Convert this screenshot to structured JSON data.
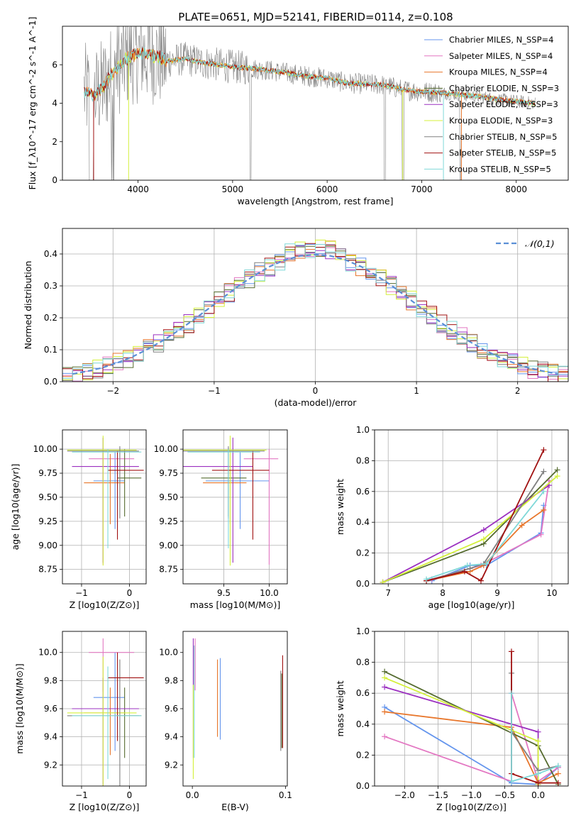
{
  "figure_title": "PLATE=0651, MJD=52141, FIBERID=0114, z=0.108",
  "colors": {
    "Chabrier MILES": "#6495ed",
    "Salpeter MILES": "#e377c2",
    "Kroupa MILES": "#e8762b",
    "Chabrier ELODIE": "#556b2f",
    "Salpeter ELODIE": "#9b30c0",
    "Kroupa ELODIE": "#d4f03a",
    "Chabrier STELIB": "#808080",
    "Salpeter STELIB": "#a01010",
    "Kroupa STELIB": "#7fd8d8",
    "normal": "#5b8fd6"
  },
  "chart_data": [
    {
      "id": "spectrum",
      "type": "line",
      "xlabel": "wavelength [Angstrom, rest frame]",
      "ylabel": "Flux [f_λ10^-17 erg cm^-2 s^-1 A^-1]",
      "xlim": [
        3200,
        8550
      ],
      "ylim": [
        0,
        8
      ],
      "xticks": [
        4000,
        5000,
        6000,
        7000,
        8000
      ],
      "yticks": [
        0,
        2,
        4,
        6
      ],
      "legend_position": "right",
      "legend": [
        "Chabrier MILES, N_SSP=4",
        "Salpeter MILES, N_SSP=4",
        "Kroupa MILES, N_SSP=4",
        "Chabrier ELODIE, N_SSP=3",
        "Salpeter ELODIE, N_SSP=3",
        "Kroupa ELODIE, N_SSP=3",
        "Chabrier STELIB, N_SSP=5",
        "Salpeter STELIB, N_SSP=5",
        "Kroupa STELIB, N_SSP=5"
      ],
      "continuum": {
        "x": [
          3420,
          3550,
          3650,
          3750,
          3850,
          3950,
          4050,
          4150,
          4300,
          4500,
          4700,
          5000,
          5200,
          5400,
          5600,
          5800,
          6000,
          6200,
          6400,
          6600,
          6800,
          7000,
          7200,
          7400,
          7600,
          7800,
          8000,
          8200
        ],
        "y": [
          4.6,
          4.4,
          5.0,
          5.7,
          6.2,
          6.5,
          6.6,
          6.5,
          6.2,
          6.3,
          6.1,
          5.9,
          5.8,
          5.7,
          5.55,
          5.4,
          5.3,
          5.05,
          5.0,
          4.95,
          4.7,
          4.6,
          4.55,
          4.45,
          4.35,
          4.2,
          4.1,
          4.0
        ]
      }
    },
    {
      "id": "residuals",
      "type": "histogram",
      "xlabel": "(data-model)/error",
      "ylabel": "Normed distribution",
      "xlim": [
        -2.5,
        2.5
      ],
      "ylim": [
        0,
        0.48
      ],
      "xticks": [
        -2,
        -1,
        0,
        1,
        2
      ],
      "yticks": [
        0.0,
        0.1,
        0.2,
        0.3,
        0.4
      ],
      "grid": true,
      "legend": [
        "𝒩(0,1)"
      ],
      "legend_position": "top-right",
      "bin_width": 0.1,
      "reference_density": [
        0.024,
        0.033,
        0.044,
        0.06,
        0.079,
        0.103,
        0.13,
        0.161,
        0.195,
        0.23,
        0.266,
        0.302,
        0.333,
        0.361,
        0.381,
        0.394,
        0.398,
        0.394,
        0.381,
        0.361,
        0.333,
        0.302,
        0.266,
        0.23,
        0.195,
        0.161,
        0.13,
        0.103,
        0.079,
        0.06,
        0.044,
        0.033,
        0.024
      ]
    },
    {
      "id": "age_vs_Z",
      "type": "errorbar",
      "xlabel": "Z [log10(Z/Z⊙)]",
      "ylabel": "age  [log10(age/yr)]",
      "xlim": [
        -1.4,
        0.35
      ],
      "ylim": [
        8.6,
        10.2
      ],
      "xticks": [
        -1,
        0
      ],
      "yticks": [
        8.75,
        9.0,
        9.25,
        9.5,
        9.75,
        10.0
      ],
      "grid": true,
      "points": [
        {
          "series": "Chabrier MILES",
          "x": -0.3,
          "xerr": [
            0.45,
            0.2
          ],
          "y": 9.67,
          "yerr": [
            0.5,
            0.3
          ]
        },
        {
          "series": "Salpeter MILES",
          "x": -0.55,
          "xerr": [
            0.3,
            0.65
          ],
          "y": 9.9,
          "yerr": [
            1.1,
            0.1
          ]
        },
        {
          "series": "Kroupa MILES",
          "x": -0.4,
          "xerr": [
            0.55,
            0.3
          ],
          "y": 9.65,
          "yerr": [
            0.43,
            0.3
          ]
        },
        {
          "series": "Chabrier ELODIE",
          "x": -0.1,
          "xerr": [
            0.15,
            0.35
          ],
          "y": 9.7,
          "yerr": [
            0.4,
            0.3
          ]
        },
        {
          "series": "Salpeter ELODIE",
          "x": -0.55,
          "xerr": [
            0.65,
            0.75
          ],
          "y": 9.82,
          "yerr": [
            1.0,
            0.3
          ]
        },
        {
          "series": "Kroupa ELODIE",
          "x": -0.55,
          "xerr": [
            0.75,
            0.7
          ],
          "y": 9.99,
          "yerr": [
            1.2,
            0.15
          ]
        },
        {
          "series": "Chabrier STELIB",
          "x": -0.2,
          "xerr": [
            1.1,
            0.4
          ],
          "y": 9.98,
          "yerr": [
            0.7,
            0.05
          ]
        },
        {
          "series": "Salpeter STELIB",
          "x": -0.25,
          "xerr": [
            0.2,
            0.55
          ],
          "y": 9.78,
          "yerr": [
            0.72,
            0.2
          ]
        },
        {
          "series": "Kroupa STELIB",
          "x": -0.45,
          "xerr": [
            0.75,
            0.7
          ],
          "y": 9.97,
          "yerr": [
            1.0,
            0.03
          ]
        }
      ]
    },
    {
      "id": "age_vs_mass",
      "type": "errorbar",
      "xlabel": "mass [log10(M/M⊙)]",
      "ylabel": "",
      "xlim": [
        9.05,
        10.2
      ],
      "ylim": [
        8.6,
        10.2
      ],
      "xticks": [
        9.5,
        10.0
      ],
      "yticks": [
        8.75,
        9.0,
        9.25,
        9.5,
        9.75,
        10.0
      ],
      "grid": true,
      "points": [
        {
          "series": "Chabrier MILES",
          "x": 9.68,
          "xerr": [
            0.38,
            0.32
          ],
          "y": 9.67,
          "yerr": [
            0.5,
            0.3
          ]
        },
        {
          "series": "Salpeter MILES",
          "x": 10.0,
          "xerr": [
            0.28,
            0.1
          ],
          "y": 9.9,
          "yerr": [
            1.1,
            0.1
          ]
        },
        {
          "series": "Kroupa MILES",
          "x": 9.57,
          "xerr": [
            0.3,
            0.18
          ],
          "y": 9.65,
          "yerr": [
            0.43,
            0.3
          ]
        },
        {
          "series": "Chabrier ELODIE",
          "x": 9.55,
          "xerr": [
            0.3,
            0.2
          ],
          "y": 9.7,
          "yerr": [
            0.4,
            0.3
          ]
        },
        {
          "series": "Salpeter ELODIE",
          "x": 9.6,
          "xerr": [
            0.62,
            0.22
          ],
          "y": 9.82,
          "yerr": [
            1.0,
            0.3
          ]
        },
        {
          "series": "Kroupa ELODIE",
          "x": 9.57,
          "xerr": [
            0.68,
            0.4
          ],
          "y": 9.99,
          "yerr": [
            1.2,
            0.15
          ]
        },
        {
          "series": "Chabrier STELIB",
          "x": 9.55,
          "xerr": [
            0.65,
            0.4
          ],
          "y": 9.98,
          "yerr": [
            0.7,
            0.05
          ]
        },
        {
          "series": "Salpeter STELIB",
          "x": 9.82,
          "xerr": [
            0.45,
            0.18
          ],
          "y": 9.78,
          "yerr": [
            0.72,
            0.2
          ]
        },
        {
          "series": "Kroupa STELIB",
          "x": 9.55,
          "xerr": [
            0.45,
            0.35
          ],
          "y": 9.97,
          "yerr": [
            1.0,
            0.03
          ]
        }
      ]
    },
    {
      "id": "weight_vs_age",
      "type": "line",
      "xlabel": "age  [log10(age/yr)]",
      "ylabel": "mass weight",
      "xlim": [
        6.75,
        10.3
      ],
      "ylim": [
        0,
        1.0
      ],
      "xticks": [
        7,
        8,
        9,
        10
      ],
      "yticks": [
        0.0,
        0.2,
        0.4,
        0.6,
        0.8,
        1.0
      ],
      "grid": true,
      "series": [
        {
          "series": "Chabrier MILES",
          "x": [
            7.8,
            8.5,
            8.8,
            9.8,
            9.85
          ],
          "y": [
            0.02,
            0.12,
            0.12,
            0.33,
            0.51
          ]
        },
        {
          "series": "Salpeter MILES",
          "x": [
            7.8,
            8.7,
            9.8,
            9.95
          ],
          "y": [
            0.03,
            0.12,
            0.32,
            0.67
          ]
        },
        {
          "series": "Kroupa MILES",
          "x": [
            7.7,
            8.5,
            8.75,
            9.45,
            9.85
          ],
          "y": [
            0.02,
            0.08,
            0.12,
            0.38,
            0.48
          ]
        },
        {
          "series": "Chabrier ELODIE",
          "x": [
            6.9,
            8.75,
            10.1
          ],
          "y": [
            0.01,
            0.26,
            0.74
          ]
        },
        {
          "series": "Salpeter ELODIE",
          "x": [
            6.9,
            8.75,
            9.95
          ],
          "y": [
            0.01,
            0.35,
            0.64
          ]
        },
        {
          "series": "Kroupa ELODIE",
          "x": [
            6.9,
            8.75,
            10.1
          ],
          "y": [
            0.01,
            0.29,
            0.7
          ]
        },
        {
          "series": "Chabrier STELIB",
          "x": [
            7.7,
            8.5,
            8.75,
            9.85
          ],
          "y": [
            0.02,
            0.1,
            0.13,
            0.73
          ]
        },
        {
          "series": "Salpeter STELIB",
          "x": [
            7.7,
            8.4,
            8.7,
            9.85
          ],
          "y": [
            0.02,
            0.08,
            0.02,
            0.87
          ]
        },
        {
          "series": "Kroupa STELIB",
          "x": [
            7.7,
            8.45,
            8.8,
            9.85
          ],
          "y": [
            0.03,
            0.12,
            0.13,
            0.6
          ]
        }
      ]
    },
    {
      "id": "mass_vs_Z",
      "type": "errorbar",
      "xlabel": "Z [log10(Z/Z⊙)]",
      "ylabel": "mass [log10(M/M⊙)]",
      "xlim": [
        -1.4,
        0.35
      ],
      "ylim": [
        9.05,
        10.15
      ],
      "xticks": [
        -1,
        0
      ],
      "yticks": [
        9.2,
        9.4,
        9.6,
        9.8,
        10.0
      ],
      "grid": true,
      "points": [
        {
          "series": "Chabrier MILES",
          "x": -0.3,
          "xerr": [
            0.45,
            0.2
          ],
          "y": 9.68,
          "yerr": [
            0.38,
            0.32
          ]
        },
        {
          "series": "Salpeter MILES",
          "x": -0.55,
          "xerr": [
            0.3,
            0.65
          ],
          "y": 10.0,
          "yerr": [
            0.28,
            0.1
          ]
        },
        {
          "series": "Kroupa MILES",
          "x": -0.4,
          "xerr": [
            0.55,
            0.3
          ],
          "y": 9.57,
          "yerr": [
            0.3,
            0.18
          ]
        },
        {
          "series": "Chabrier ELODIE",
          "x": -0.1,
          "xerr": [
            0.15,
            0.35
          ],
          "y": 9.55,
          "yerr": [
            0.3,
            0.2
          ]
        },
        {
          "series": "Salpeter ELODIE",
          "x": -0.55,
          "xerr": [
            0.65,
            0.75
          ],
          "y": 9.6,
          "yerr": [
            0.62,
            0.22
          ]
        },
        {
          "series": "Kroupa ELODIE",
          "x": -0.55,
          "xerr": [
            0.75,
            0.7
          ],
          "y": 9.57,
          "yerr": [
            0.68,
            0.4
          ]
        },
        {
          "series": "Chabrier STELIB",
          "x": -0.2,
          "xerr": [
            1.1,
            0.4
          ],
          "y": 9.55,
          "yerr": [
            0.65,
            0.4
          ]
        },
        {
          "series": "Salpeter STELIB",
          "x": -0.25,
          "xerr": [
            0.2,
            0.55
          ],
          "y": 9.82,
          "yerr": [
            0.45,
            0.18
          ]
        },
        {
          "series": "Kroupa STELIB",
          "x": -0.45,
          "xerr": [
            0.75,
            0.7
          ],
          "y": 9.55,
          "yerr": [
            0.45,
            0.35
          ]
        }
      ]
    },
    {
      "id": "mass_vs_ebv",
      "type": "errorbar",
      "xlabel": "E(B-V)",
      "ylabel": "",
      "xlim": [
        -0.01,
        0.102
      ],
      "ylim": [
        9.05,
        10.15
      ],
      "xticks": [
        0.0,
        0.1
      ],
      "yticks": [
        9.2,
        9.4,
        9.6,
        9.8,
        10.0
      ],
      "grid": false,
      "points": [
        {
          "series": "Chabrier MILES",
          "x": 0.03,
          "y": 9.68,
          "yerr": [
            0.3,
            0.28
          ]
        },
        {
          "series": "Salpeter MILES",
          "x": 0.003,
          "y": 10.0,
          "yerr": [
            0.27,
            0.1
          ]
        },
        {
          "series": "Kroupa MILES",
          "x": 0.027,
          "y": 9.57,
          "yerr": [
            0.17,
            0.38
          ]
        },
        {
          "series": "Chabrier ELODIE",
          "x": 0.096,
          "y": 9.55,
          "yerr": [
            0.23,
            0.3
          ]
        },
        {
          "series": "Salpeter ELODIE",
          "x": 0.001,
          "y": 9.6,
          "yerr": [
            0.35,
            0.5
          ]
        },
        {
          "series": "Kroupa ELODIE",
          "x": 0.001,
          "y": 9.57,
          "yerr": [
            0.47,
            0.2
          ]
        },
        {
          "series": "Chabrier STELIB",
          "x": 0.095,
          "y": 9.55,
          "yerr": [
            0.25,
            0.32
          ]
        },
        {
          "series": "Salpeter STELIB",
          "x": 0.097,
          "y": 9.82,
          "yerr": [
            0.5,
            0.16
          ]
        },
        {
          "series": "Kroupa STELIB",
          "x": 0.002,
          "y": 9.55,
          "yerr": [
            0.3,
            0.5
          ]
        }
      ]
    },
    {
      "id": "weight_vs_Z",
      "type": "line",
      "xlabel": "Z [log10(Z/Z⊙)]",
      "ylabel": "mass weight",
      "xlim": [
        -2.45,
        0.45
      ],
      "ylim": [
        0,
        1.0
      ],
      "xticks": [
        -2.0,
        -1.5,
        -1.0,
        -0.5,
        0.0
      ],
      "yticks": [
        0.0,
        0.2,
        0.4,
        0.6,
        0.8,
        1.0
      ],
      "grid": true,
      "series": [
        {
          "series": "Chabrier MILES",
          "x": [
            -2.3,
            -0.4,
            0.0,
            0.3
          ],
          "y": [
            0.51,
            0.02,
            0.01,
            0.12
          ]
        },
        {
          "series": "Salpeter MILES",
          "x": [
            -2.3,
            -0.4,
            -0.4,
            0.0,
            0.3
          ],
          "y": [
            0.32,
            0.03,
            0.6,
            0.03,
            0.12
          ]
        },
        {
          "series": "Kroupa MILES",
          "x": [
            -2.3,
            -0.4,
            0.0,
            0.3
          ],
          "y": [
            0.48,
            0.38,
            0.02,
            0.08
          ]
        },
        {
          "series": "Chabrier ELODIE",
          "x": [
            -2.3,
            0.0,
            0.3
          ],
          "y": [
            0.74,
            0.26,
            0.01
          ]
        },
        {
          "series": "Salpeter ELODIE",
          "x": [
            -2.3,
            0.0,
            0.0
          ],
          "y": [
            0.64,
            0.35,
            0.01
          ]
        },
        {
          "series": "Kroupa ELODIE",
          "x": [
            -2.3,
            0.0,
            0.0
          ],
          "y": [
            0.7,
            0.29,
            0.01
          ]
        },
        {
          "series": "Chabrier STELIB",
          "x": [
            -0.4,
            -0.4,
            0.0,
            0.3
          ],
          "y": [
            0.73,
            0.35,
            0.1,
            0.13
          ]
        },
        {
          "series": "Salpeter STELIB",
          "x": [
            -0.4,
            -0.4,
            0.0,
            0.3
          ],
          "y": [
            0.87,
            0.08,
            0.02,
            0.02
          ]
        },
        {
          "series": "Kroupa STELIB",
          "x": [
            -0.4,
            -0.4,
            0.0,
            0.3
          ],
          "y": [
            0.6,
            0.03,
            0.08,
            0.13
          ]
        }
      ]
    }
  ]
}
